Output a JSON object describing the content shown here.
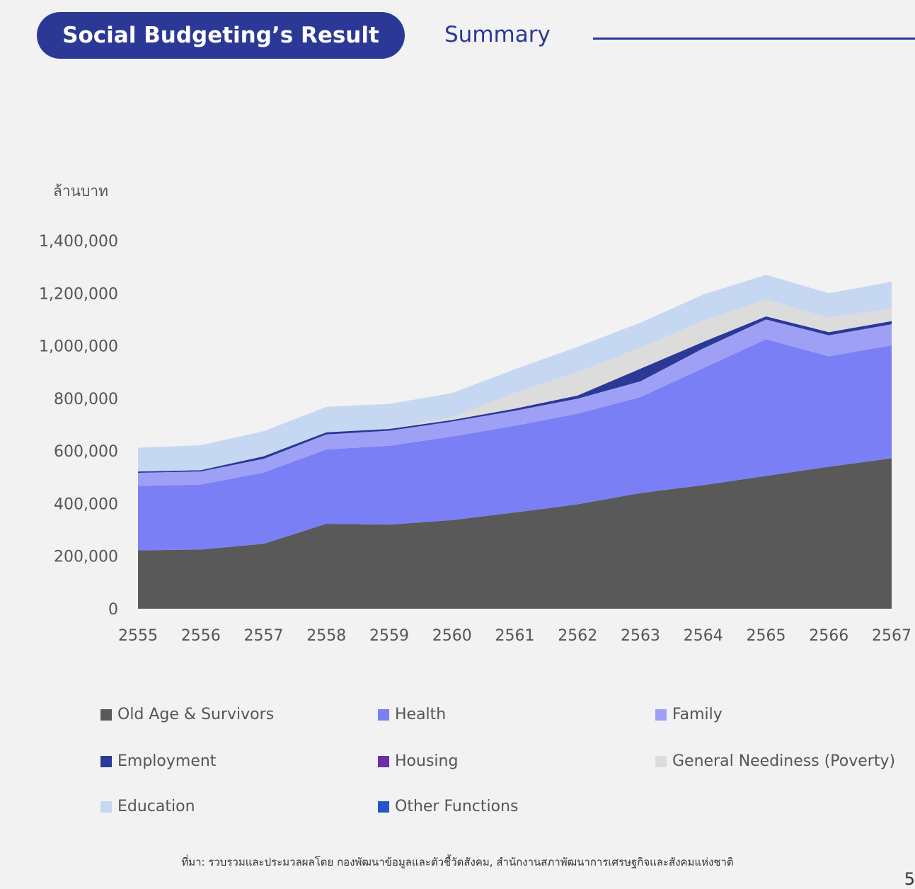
{
  "header": {
    "title": "Social Budgeting’s Result",
    "subtitle": "Summary"
  },
  "footer": {
    "source": "ที่มา: รวบรวมและประมวลผลโดย กองพัฒนาข้อมูลและตัวชี้วัดสังคม, สำนักงานสภาพัฒนาการเศรษฐกิจและสังคมแห่งชาติ",
    "page": "5"
  },
  "chart_data": {
    "type": "area",
    "stacked": true,
    "ylabel": "ล้านบาท",
    "xlabel": "",
    "ylim": [
      0,
      1400000
    ],
    "yticks": [
      0,
      200000,
      400000,
      600000,
      800000,
      1000000,
      1200000,
      1400000
    ],
    "ytick_labels": [
      "0",
      "200,000",
      "400,000",
      "600,000",
      "800,000",
      "1,000,000",
      "1,200,000",
      "1,400,000"
    ],
    "grid": false,
    "legend_position": "bottom",
    "categories": [
      "2555",
      "2556",
      "2557",
      "2558",
      "2559",
      "2560",
      "2561",
      "2562",
      "2563",
      "2564",
      "2565",
      "2566",
      "2567"
    ],
    "series": [
      {
        "name": "Old Age & Survivors",
        "color": "#595959",
        "values": [
          222000,
          225000,
          247000,
          323000,
          320000,
          337000,
          366000,
          397000,
          440000,
          470000,
          505000,
          540000,
          572000
        ]
      },
      {
        "name": "Health",
        "color": "#7b7ff5",
        "values": [
          245000,
          247000,
          271000,
          283000,
          300000,
          318000,
          330000,
          345000,
          365000,
          445000,
          520000,
          420000,
          430000
        ]
      },
      {
        "name": "Family",
        "color": "#9ea0f5",
        "values": [
          50000,
          50000,
          52000,
          57000,
          57000,
          57000,
          57000,
          57000,
          60000,
          75000,
          75000,
          80000,
          80000
        ]
      },
      {
        "name": "Employment",
        "color": "#2b3896",
        "values": [
          5000,
          5000,
          10000,
          8000,
          7000,
          6000,
          8000,
          12000,
          48000,
          25000,
          12000,
          12000,
          12000
        ]
      },
      {
        "name": "Housing",
        "color": "#6a2fa6",
        "values": [
          0,
          0,
          0,
          0,
          0,
          0,
          0,
          0,
          0,
          0,
          0,
          0,
          0
        ]
      },
      {
        "name": "General Neediness (Poverty)",
        "color": "#dcdcdc",
        "values": [
          0,
          0,
          0,
          0,
          0,
          10000,
          60000,
          90000,
          80000,
          80000,
          65000,
          55000,
          50000
        ]
      },
      {
        "name": "Education",
        "color": "#c6d7f2",
        "values": [
          90000,
          95000,
          95000,
          97000,
          95000,
          92000,
          90000,
          95000,
          95000,
          100000,
          93000,
          93000,
          100000
        ]
      },
      {
        "name": "Other Functions",
        "color": "#2456c9",
        "values": [
          0,
          0,
          0,
          0,
          0,
          0,
          0,
          0,
          0,
          0,
          0,
          0,
          0
        ]
      }
    ]
  }
}
